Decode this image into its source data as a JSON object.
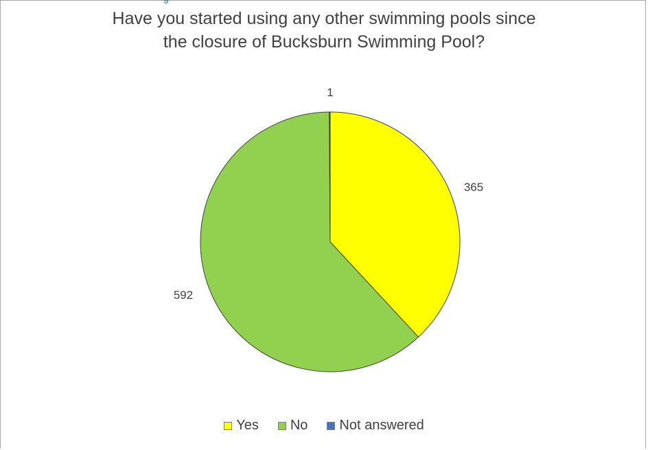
{
  "header_fragment": "g",
  "chart_data": {
    "type": "pie",
    "title_line1": "Have you started using any other swimming pools since",
    "title_line2": "the closure of Bucksburn Swimming Pool?",
    "categories": [
      "Yes",
      "No",
      "Not answered"
    ],
    "values": [
      365,
      592,
      1
    ],
    "colors": [
      "#ffff00",
      "#92d050",
      "#4472c4"
    ],
    "start_angle_deg": 0,
    "direction": "clockwise",
    "data_labels": [
      "365",
      "592",
      "1"
    ],
    "legend_position": "bottom"
  }
}
